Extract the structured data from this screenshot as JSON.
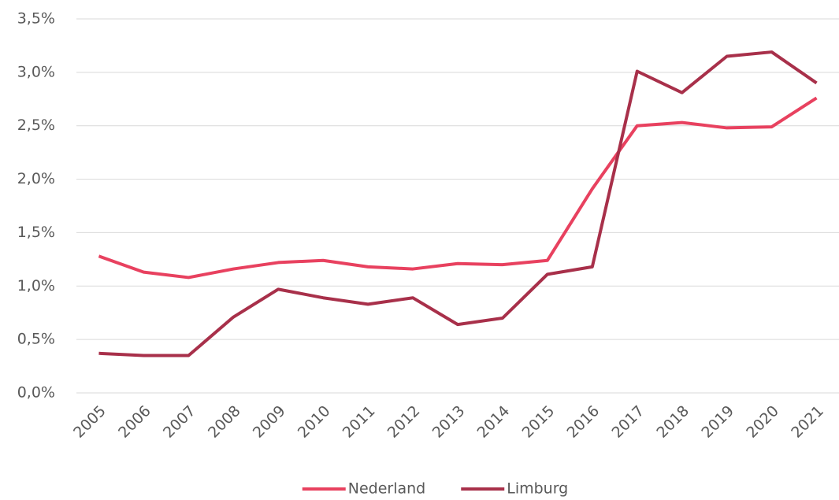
{
  "chart_data": {
    "type": "line",
    "categories": [
      "2005",
      "2006",
      "2007",
      "2008",
      "2009",
      "2010",
      "2011",
      "2012",
      "2013",
      "2014",
      "2015",
      "2016",
      "2017",
      "2018",
      "2019",
      "2020",
      "2021"
    ],
    "series": [
      {
        "name": "Nederland",
        "color": "#e8415f",
        "values": [
          1.28,
          1.13,
          1.08,
          1.16,
          1.22,
          1.24,
          1.18,
          1.16,
          1.21,
          1.2,
          1.24,
          1.91,
          2.5,
          2.53,
          2.48,
          2.49,
          2.76
        ]
      },
      {
        "name": "Limburg",
        "color": "#a8304a",
        "values": [
          0.37,
          0.35,
          0.35,
          0.71,
          0.97,
          0.89,
          0.83,
          0.89,
          0.64,
          0.7,
          1.11,
          1.18,
          3.01,
          2.81,
          3.15,
          3.19,
          2.9
        ]
      }
    ],
    "ylim": [
      0,
      3.5
    ],
    "yticks": [
      {
        "value": 0,
        "label": "0,0%"
      },
      {
        "value": 0.5,
        "label": "0,5%"
      },
      {
        "value": 1,
        "label": "1,0%"
      },
      {
        "value": 1.5,
        "label": "1,5%"
      },
      {
        "value": 2,
        "label": "2,0%"
      },
      {
        "value": 2.5,
        "label": "2,5%"
      },
      {
        "value": 3,
        "label": "3,0%"
      },
      {
        "value": 3.5,
        "label": "3,5%"
      }
    ],
    "grid": true,
    "legend": "bottom"
  }
}
